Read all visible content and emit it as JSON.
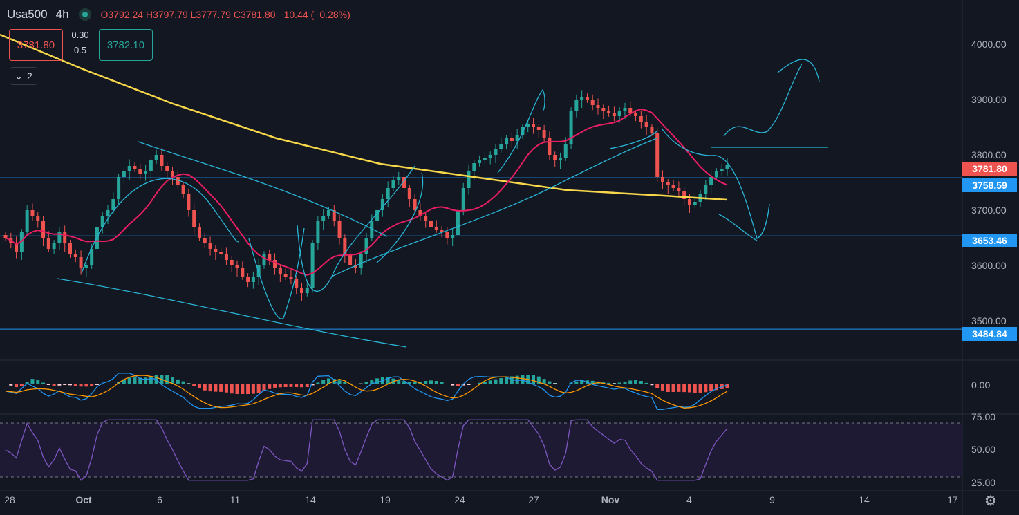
{
  "header": {
    "symbol": "Usa500",
    "timeframe": "4h",
    "open": "O3792.24",
    "high": "H3797.79",
    "low": "L3777.79",
    "close": "C3781.80",
    "change": "−10.44 (−0.28%)"
  },
  "trade": {
    "sell_price": "3781.80",
    "spread_top": "0.30",
    "spread_bottom": "0.5",
    "buy_price": "3782.10"
  },
  "indicators_toggle": "2",
  "price_tags": [
    {
      "label": "3781.80",
      "value": 3781.8,
      "color": "#ef5350"
    },
    {
      "label": "3758.59",
      "value": 3758.59,
      "color": "#2196f3"
    },
    {
      "label": "3653.46",
      "value": 3653.46,
      "color": "#2196f3"
    },
    {
      "label": "3484.84",
      "value": 3484.84,
      "color": "#2196f3"
    }
  ],
  "rsi_ticks": [
    "75.00",
    "50.00",
    "25.00"
  ],
  "macd_ticks": [
    "0.00"
  ],
  "chart_data": {
    "type": "candlestick",
    "y_axis": {
      "ticks": [
        "4000.00",
        "3900.00",
        "3800.00",
        "3700.00",
        "3600.00",
        "3500.00"
      ],
      "ylim": [
        3430,
        4080
      ]
    },
    "x_axis": {
      "ticks": [
        "28",
        "Oct",
        "6",
        "11",
        "14",
        "19",
        "24",
        "27",
        "Nov",
        "4",
        "9",
        "14",
        "17"
      ]
    },
    "horizontal_lines": [
      3758.59,
      3653.46,
      3484.84
    ],
    "last_price": 3781.8,
    "close_series": [
      3650,
      3640,
      3625,
      3660,
      3700,
      3690,
      3680,
      3650,
      3630,
      3640,
      3660,
      3640,
      3620,
      3615,
      3595,
      3600,
      3630,
      3670,
      3690,
      3700,
      3720,
      3760,
      3770,
      3780,
      3775,
      3765,
      3770,
      3790,
      3800,
      3780,
      3770,
      3760,
      3745,
      3730,
      3700,
      3670,
      3650,
      3640,
      3630,
      3625,
      3620,
      3610,
      3600,
      3595,
      3580,
      3570,
      3580,
      3600,
      3620,
      3610,
      3595,
      3585,
      3580,
      3575,
      3560,
      3550,
      3560,
      3640,
      3680,
      3690,
      3700,
      3680,
      3650,
      3620,
      3600,
      3595,
      3620,
      3650,
      3680,
      3700,
      3720,
      3740,
      3755,
      3760,
      3740,
      3720,
      3700,
      3690,
      3680,
      3670,
      3665,
      3660,
      3650,
      3655,
      3700,
      3740,
      3770,
      3785,
      3790,
      3795,
      3800,
      3810,
      3820,
      3830,
      3825,
      3835,
      3850,
      3855,
      3850,
      3845,
      3830,
      3800,
      3790,
      3795,
      3820,
      3880,
      3900,
      3905,
      3900,
      3890,
      3885,
      3880,
      3875,
      3870,
      3880,
      3885,
      3875,
      3870,
      3860,
      3850,
      3840,
      3760,
      3750,
      3745,
      3740,
      3735,
      3720,
      3710,
      3715,
      3730,
      3745,
      3760,
      3770,
      3775,
      3782
    ],
    "series": [
      {
        "name": "MA slow",
        "color": "#f7d74a"
      },
      {
        "name": "MA fast",
        "color": "#e91e63"
      },
      {
        "name": "MACD",
        "color": "#2196f3"
      },
      {
        "name": "Signal",
        "color": "#ff9800"
      },
      {
        "name": "RSI",
        "color": "#7e57c2"
      }
    ]
  }
}
